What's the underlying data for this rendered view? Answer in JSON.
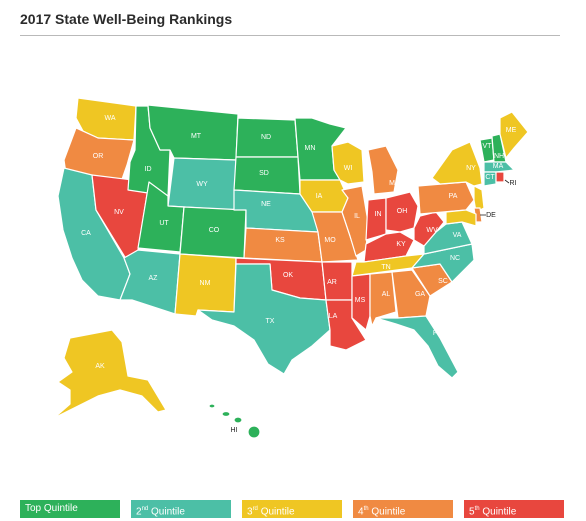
{
  "title": "2017 State Well-Being Rankings",
  "colors": {
    "q1": "#2db15a",
    "q2": "#4cbfa6",
    "q3": "#efc623",
    "q4": "#f08a42",
    "q5": "#e8473e"
  },
  "legend": [
    {
      "num": "Top",
      "sup": "",
      "word": "Quintile"
    },
    {
      "num": "2",
      "sup": "nd",
      "word": "Quintile"
    },
    {
      "num": "3",
      "sup": "rd",
      "word": "Quintile"
    },
    {
      "num": "4",
      "sup": "th",
      "word": "Quintile"
    },
    {
      "num": "5",
      "sup": "th",
      "word": "Quintile"
    }
  ],
  "states": {
    "WA": "q3",
    "OR": "q4",
    "CA": "q2",
    "NV": "q5",
    "ID": "q1",
    "MT": "q1",
    "WY": "q2",
    "UT": "q1",
    "CO": "q1",
    "AZ": "q2",
    "NM": "q3",
    "ND": "q1",
    "SD": "q1",
    "NE": "q2",
    "KS": "q4",
    "OK": "q5",
    "TX": "q2",
    "MN": "q1",
    "IA": "q3",
    "MO": "q4",
    "AR": "q5",
    "LA": "q5",
    "WI": "q3",
    "IL": "q4",
    "MI": "q4",
    "IN": "q5",
    "OH": "q5",
    "KY": "q5",
    "TN": "q3",
    "MS": "q5",
    "AL": "q4",
    "GA": "q4",
    "FL": "q2",
    "SC": "q4",
    "NC": "q2",
    "VA": "q2",
    "WV": "q5",
    "PA": "q4",
    "NY": "q3",
    "VT": "q1",
    "NH": "q1",
    "ME": "q3",
    "MA": "q2",
    "CT": "q2",
    "RI": "q5",
    "NJ": "q3",
    "DE": "q4",
    "MD": "q3",
    "AK": "q3",
    "HI": "q1"
  }
}
